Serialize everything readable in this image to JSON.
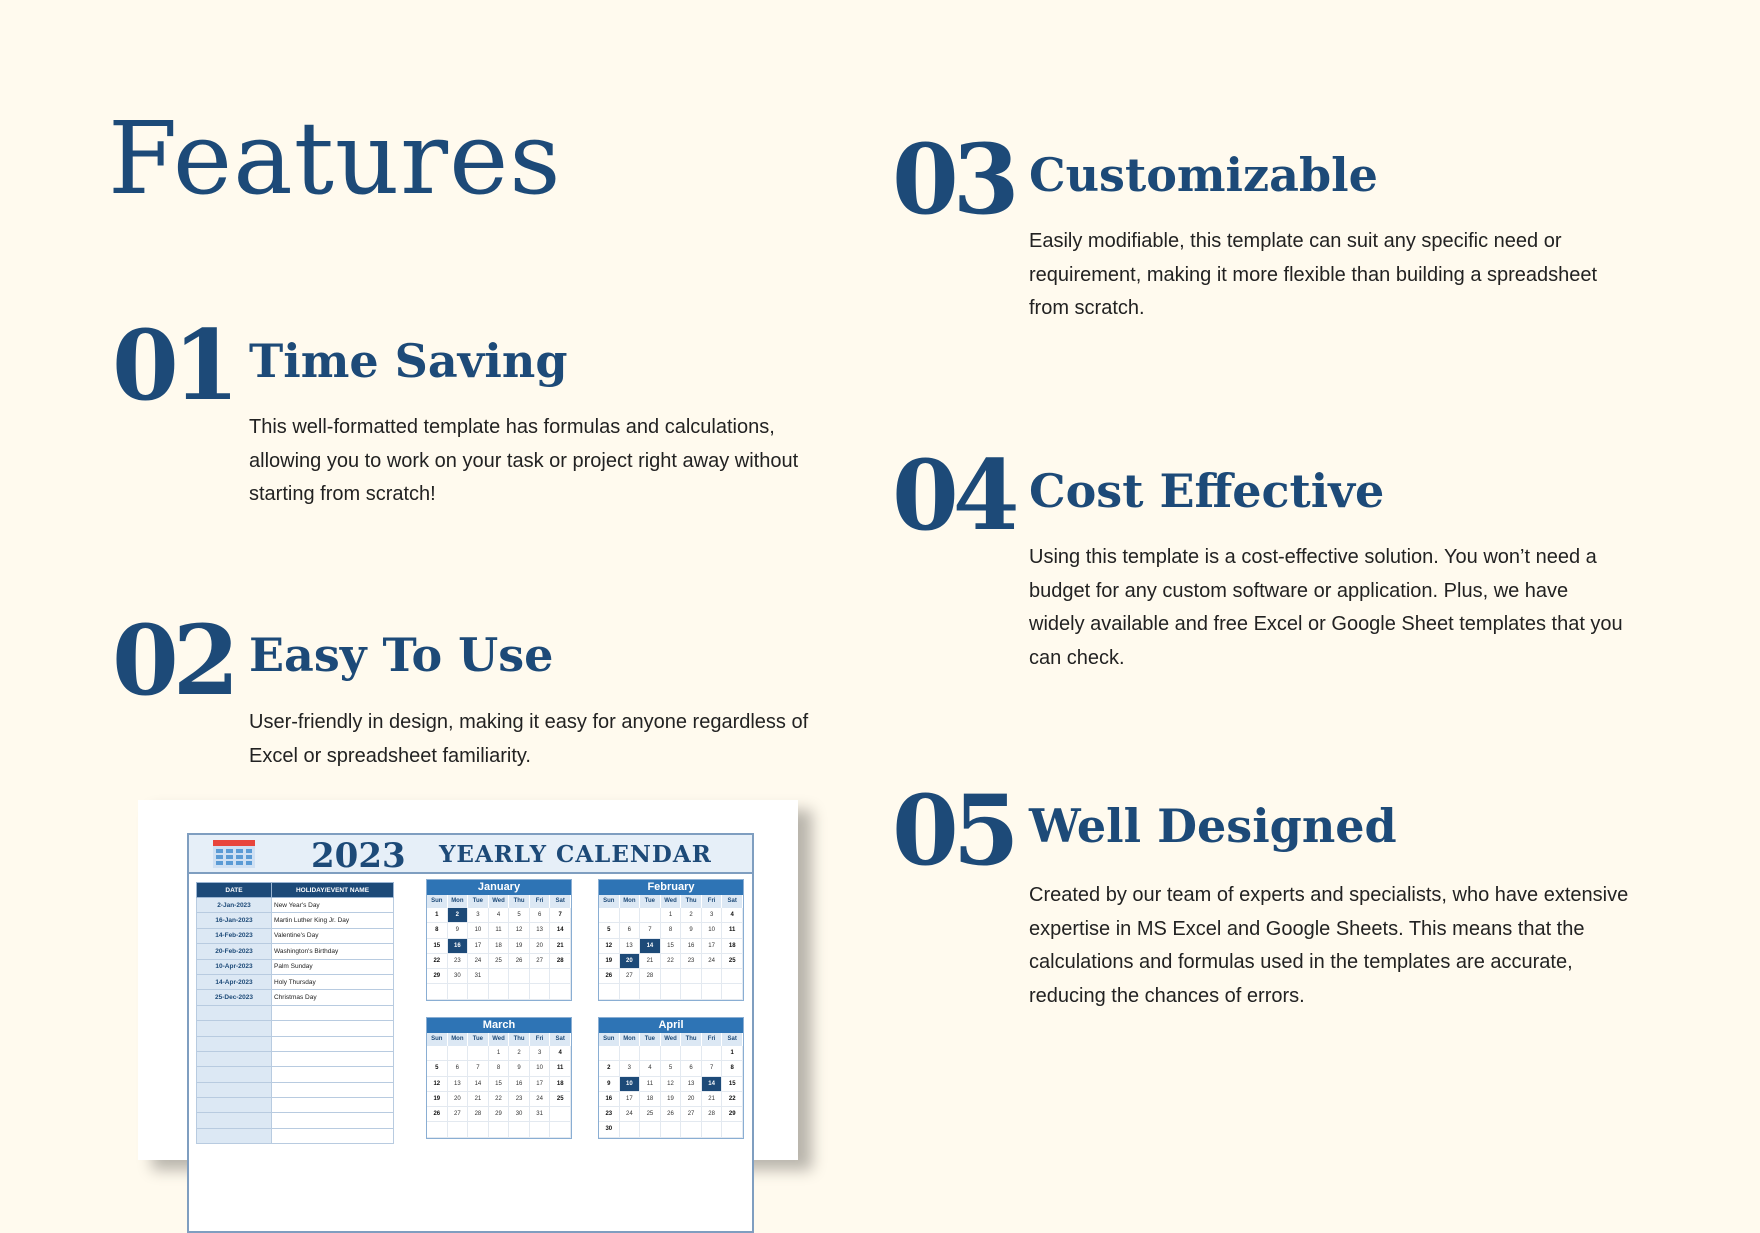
{
  "page_title": "Features",
  "features": [
    {
      "num": "01",
      "title": "Time Saving",
      "body": "This well-formatted template has formulas and calculations, allowing you to work on your task or project right away without starting from scratch!"
    },
    {
      "num": "02",
      "title": "Easy To Use",
      "body": "User-friendly in design, making it easy for anyone regardless of Excel or spreadsheet familiarity."
    },
    {
      "num": "03",
      "title": "Customizable",
      "body": "Easily modifiable, this template can suit any specific need or requirement, making it more flexible than building a spreadsheet from scratch."
    },
    {
      "num": "04",
      "title": "Cost Effective",
      "body": "Using this template is a cost-effective solution. You won’t need a budget for any custom software or application. Plus, we have widely available and free Excel or Google Sheet templates that you can check."
    },
    {
      "num": "05",
      "title": "Well Designed",
      "body": "Created by our team of  experts and specialists, who have extensive expertise in MS Excel and Google Sheets. This means that the calculations and formulas used in the templates are accurate, reducing the chances of errors."
    }
  ],
  "calendar": {
    "year": "2023",
    "title": "YEARLY CALENDAR",
    "icon": "calendar-icon",
    "columns": [
      "DATE",
      "HOLIDAY/EVENT NAME"
    ],
    "events": [
      [
        "2-Jan-2023",
        "New Year's Day"
      ],
      [
        "16-Jan-2023",
        "Martin Luther King Jr. Day"
      ],
      [
        "14-Feb-2023",
        "Valentine's Day"
      ],
      [
        "20-Feb-2023",
        "Washington's Birthday"
      ],
      [
        "10-Apr-2023",
        "Palm Sunday"
      ],
      [
        "14-Apr-2023",
        "Holy Thursday"
      ],
      [
        "25-Dec-2023",
        "Christmas Day"
      ]
    ],
    "weekdays": [
      "Sun",
      "Mon",
      "Tue",
      "Wed",
      "Thu",
      "Fri",
      "Sat"
    ],
    "months": [
      {
        "name": "January",
        "weeks": [
          [
            1,
            2,
            3,
            4,
            5,
            6,
            7
          ],
          [
            8,
            9,
            10,
            11,
            12,
            13,
            14
          ],
          [
            15,
            16,
            17,
            18,
            19,
            20,
            21
          ],
          [
            22,
            23,
            24,
            25,
            26,
            27,
            28
          ],
          [
            29,
            30,
            31,
            null,
            null,
            null,
            null
          ],
          [
            null,
            null,
            null,
            null,
            null,
            null,
            null
          ]
        ],
        "highlight": [
          2,
          16
        ]
      },
      {
        "name": "February",
        "weeks": [
          [
            null,
            null,
            null,
            1,
            2,
            3,
            4
          ],
          [
            5,
            6,
            7,
            8,
            9,
            10,
            11
          ],
          [
            12,
            13,
            14,
            15,
            16,
            17,
            18
          ],
          [
            19,
            20,
            21,
            22,
            23,
            24,
            25
          ],
          [
            26,
            27,
            28,
            null,
            null,
            null,
            null
          ],
          [
            null,
            null,
            null,
            null,
            null,
            null,
            null
          ]
        ],
        "highlight": [
          14,
          20
        ]
      },
      {
        "name": "March",
        "weeks": [
          [
            null,
            null,
            null,
            1,
            2,
            3,
            4
          ],
          [
            5,
            6,
            7,
            8,
            9,
            10,
            11
          ],
          [
            12,
            13,
            14,
            15,
            16,
            17,
            18
          ],
          [
            19,
            20,
            21,
            22,
            23,
            24,
            25
          ],
          [
            26,
            27,
            28,
            29,
            30,
            31,
            null
          ],
          [
            null,
            null,
            null,
            null,
            null,
            null,
            null
          ]
        ],
        "highlight": []
      },
      {
        "name": "April",
        "weeks": [
          [
            null,
            null,
            null,
            null,
            null,
            null,
            1
          ],
          [
            2,
            3,
            4,
            5,
            6,
            7,
            8
          ],
          [
            9,
            10,
            11,
            12,
            13,
            14,
            15
          ],
          [
            16,
            17,
            18,
            19,
            20,
            21,
            22
          ],
          [
            23,
            24,
            25,
            26,
            27,
            28,
            29
          ],
          [
            30,
            null,
            null,
            null,
            null,
            null,
            null
          ]
        ],
        "highlight": [
          10,
          14
        ]
      }
    ],
    "colors": {
      "header": "#1d4a78",
      "month_bar": "#2e74b5",
      "highlight": "#1d4a78"
    }
  }
}
